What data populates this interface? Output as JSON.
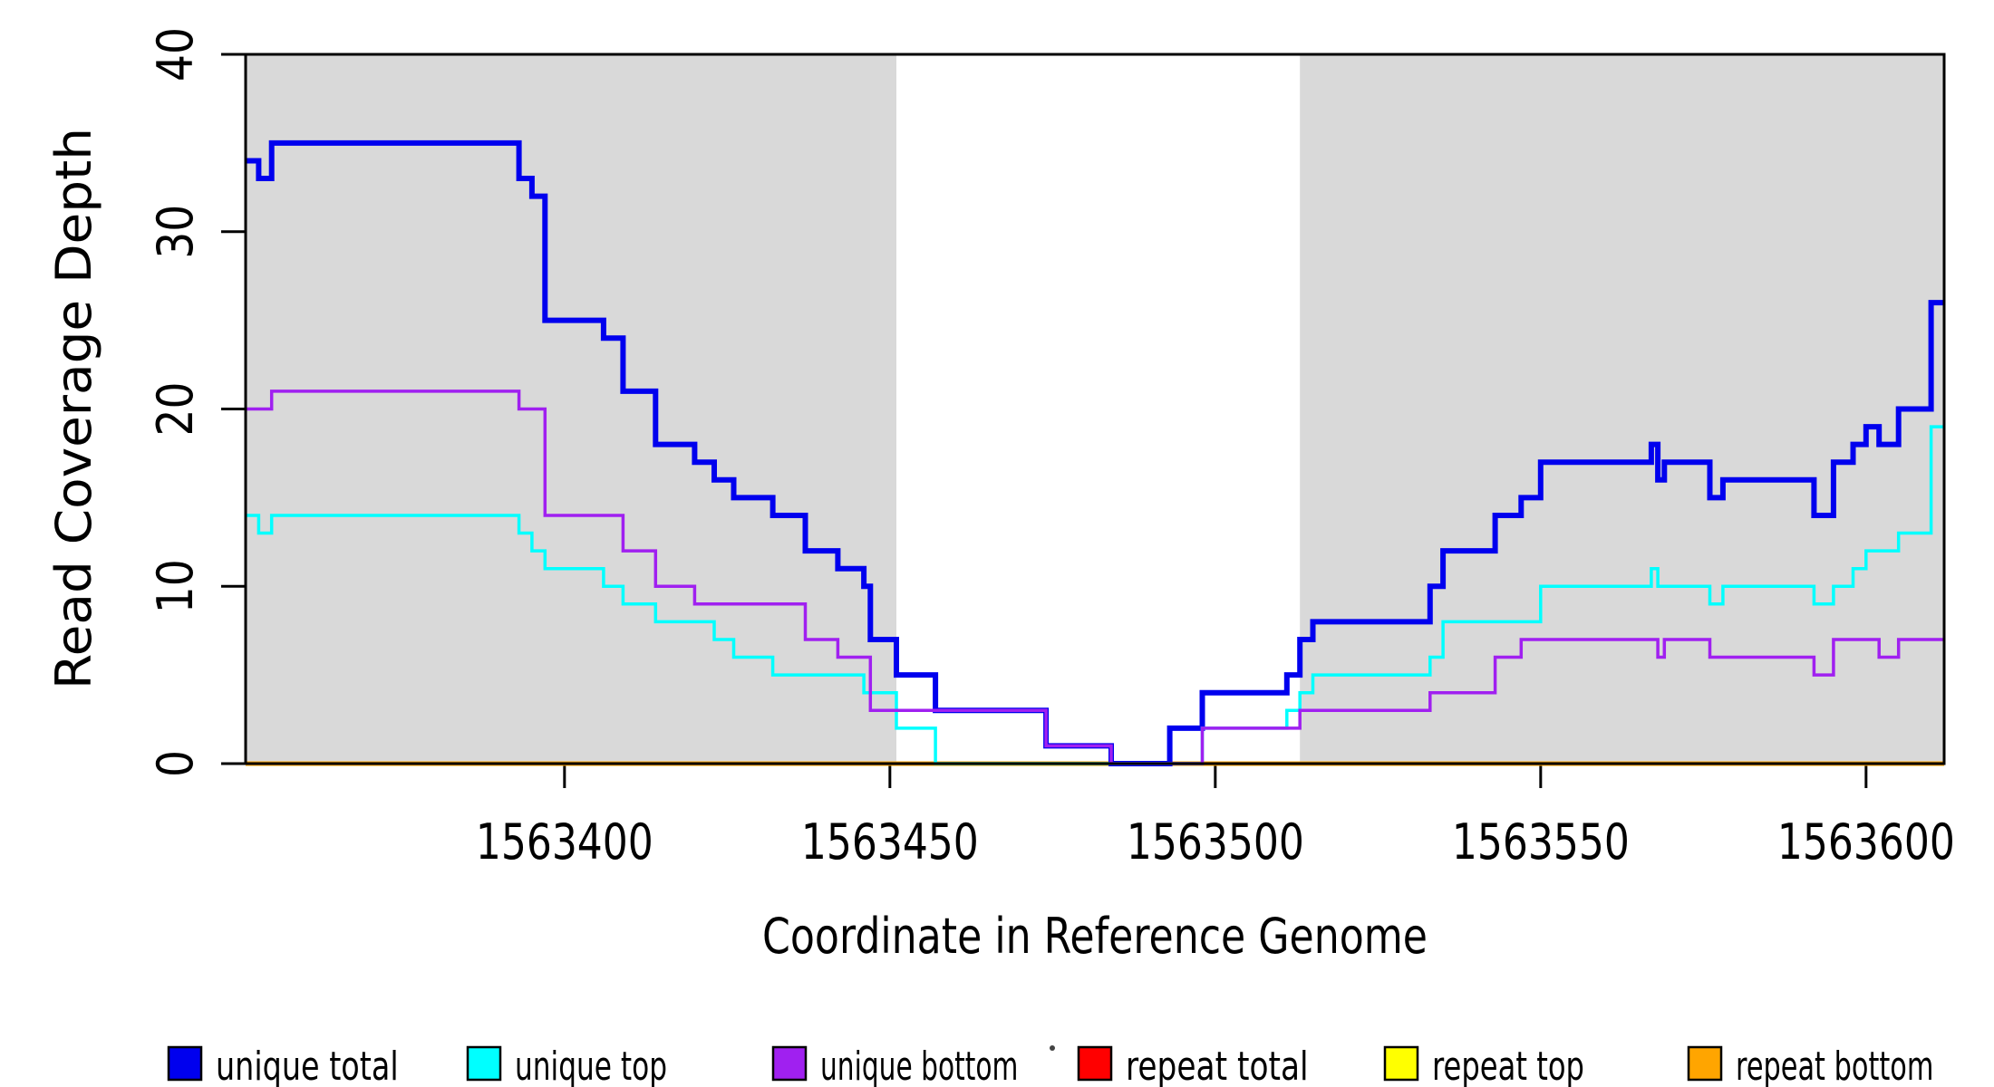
{
  "figure": {
    "x_axis_title": "Coordinate in Reference Genome",
    "y_axis_title": "Read Coverage Depth"
  },
  "chart_data": {
    "type": "line",
    "subtype": "step",
    "title": "",
    "xlabel": "Coordinate in Reference Genome",
    "ylabel": "Read Coverage Depth",
    "xlim": [
      1563351,
      1563612
    ],
    "ylim": [
      0,
      40
    ],
    "x_ticks": [
      1563400,
      1563450,
      1563500,
      1563550,
      1563600
    ],
    "y_ticks": [
      0,
      10,
      20,
      30,
      40
    ],
    "grid": false,
    "legend_position": "bottom",
    "frame_color": "#000000",
    "shaded_regions": [
      {
        "from": 1563351,
        "to": 1563451,
        "color": "#D9D9D9"
      },
      {
        "from": 1563513,
        "to": 1563612,
        "color": "#D9D9D9"
      }
    ],
    "draw_order": [
      "repeat total",
      "repeat top",
      "repeat bottom",
      "unique total",
      "unique top",
      "unique bottom"
    ],
    "series": [
      {
        "name": "unique total",
        "color": "#0000EE",
        "line_width": 6,
        "steps": [
          [
            1563351,
            34
          ],
          [
            1563353,
            33
          ],
          [
            1563355,
            35
          ],
          [
            1563393,
            33
          ],
          [
            1563395,
            32
          ],
          [
            1563397,
            25
          ],
          [
            1563406,
            24
          ],
          [
            1563409,
            21
          ],
          [
            1563414,
            18
          ],
          [
            1563420,
            17
          ],
          [
            1563423,
            16
          ],
          [
            1563426,
            15
          ],
          [
            1563432,
            14
          ],
          [
            1563437,
            12
          ],
          [
            1563442,
            11
          ],
          [
            1563446,
            10
          ],
          [
            1563447,
            7
          ],
          [
            1563451,
            5
          ],
          [
            1563457,
            3
          ],
          [
            1563474,
            1
          ],
          [
            1563484,
            0
          ],
          [
            1563493,
            2
          ],
          [
            1563498,
            4
          ],
          [
            1563511,
            5
          ],
          [
            1563513,
            7
          ],
          [
            1563515,
            8
          ],
          [
            1563533,
            10
          ],
          [
            1563535,
            12
          ],
          [
            1563543,
            14
          ],
          [
            1563547,
            15
          ],
          [
            1563550,
            17
          ],
          [
            1563567,
            18
          ],
          [
            1563568,
            16
          ],
          [
            1563569,
            17
          ],
          [
            1563576,
            15
          ],
          [
            1563578,
            16
          ],
          [
            1563592,
            14
          ],
          [
            1563595,
            17
          ],
          [
            1563598,
            18
          ],
          [
            1563600,
            19
          ],
          [
            1563602,
            18
          ],
          [
            1563605,
            20
          ],
          [
            1563610,
            26
          ]
        ]
      },
      {
        "name": "unique top",
        "color": "#00FFFF",
        "line_width": 3.5,
        "steps": [
          [
            1563351,
            14
          ],
          [
            1563353,
            13
          ],
          [
            1563355,
            14
          ],
          [
            1563393,
            13
          ],
          [
            1563395,
            12
          ],
          [
            1563397,
            11
          ],
          [
            1563406,
            10
          ],
          [
            1563409,
            9
          ],
          [
            1563414,
            8
          ],
          [
            1563423,
            7
          ],
          [
            1563426,
            6
          ],
          [
            1563432,
            5
          ],
          [
            1563446,
            4
          ],
          [
            1563451,
            2
          ],
          [
            1563457,
            0
          ],
          [
            1563498,
            2
          ],
          [
            1563511,
            3
          ],
          [
            1563513,
            4
          ],
          [
            1563515,
            5
          ],
          [
            1563533,
            6
          ],
          [
            1563535,
            8
          ],
          [
            1563550,
            10
          ],
          [
            1563567,
            11
          ],
          [
            1563568,
            10
          ],
          [
            1563576,
            9
          ],
          [
            1563578,
            10
          ],
          [
            1563592,
            9
          ],
          [
            1563595,
            10
          ],
          [
            1563598,
            11
          ],
          [
            1563600,
            12
          ],
          [
            1563605,
            13
          ],
          [
            1563610,
            19
          ]
        ]
      },
      {
        "name": "unique bottom",
        "color": "#A020F0",
        "line_width": 3.5,
        "steps": [
          [
            1563351,
            20
          ],
          [
            1563355,
            21
          ],
          [
            1563393,
            20
          ],
          [
            1563397,
            14
          ],
          [
            1563409,
            12
          ],
          [
            1563414,
            10
          ],
          [
            1563420,
            9
          ],
          [
            1563437,
            7
          ],
          [
            1563442,
            6
          ],
          [
            1563447,
            3
          ],
          [
            1563474,
            1
          ],
          [
            1563484,
            0
          ],
          [
            1563498,
            2
          ],
          [
            1563513,
            3
          ],
          [
            1563533,
            4
          ],
          [
            1563543,
            6
          ],
          [
            1563547,
            7
          ],
          [
            1563568,
            6
          ],
          [
            1563569,
            7
          ],
          [
            1563576,
            6
          ],
          [
            1563592,
            5
          ],
          [
            1563595,
            7
          ],
          [
            1563602,
            6
          ],
          [
            1563605,
            7
          ]
        ]
      },
      {
        "name": "repeat total",
        "color": "#FF0000",
        "line_width": 5,
        "steps": [
          [
            1563351,
            0
          ]
        ]
      },
      {
        "name": "repeat top",
        "color": "#FFFF00",
        "line_width": 5,
        "steps": [
          [
            1563351,
            0
          ]
        ]
      },
      {
        "name": "repeat bottom",
        "color": "#FFA500",
        "line_width": 5,
        "steps": [
          [
            1563351,
            0
          ]
        ]
      }
    ],
    "legend": [
      {
        "label": "unique total",
        "color": "#0000EE"
      },
      {
        "label": "unique top",
        "color": "#00FFFF"
      },
      {
        "label": "unique bottom",
        "color": "#A020F0"
      },
      {
        "label": "repeat total",
        "color": "#FF0000"
      },
      {
        "label": "repeat top",
        "color": "#FFFF00"
      },
      {
        "label": "repeat bottom",
        "color": "#FFA500"
      }
    ]
  }
}
